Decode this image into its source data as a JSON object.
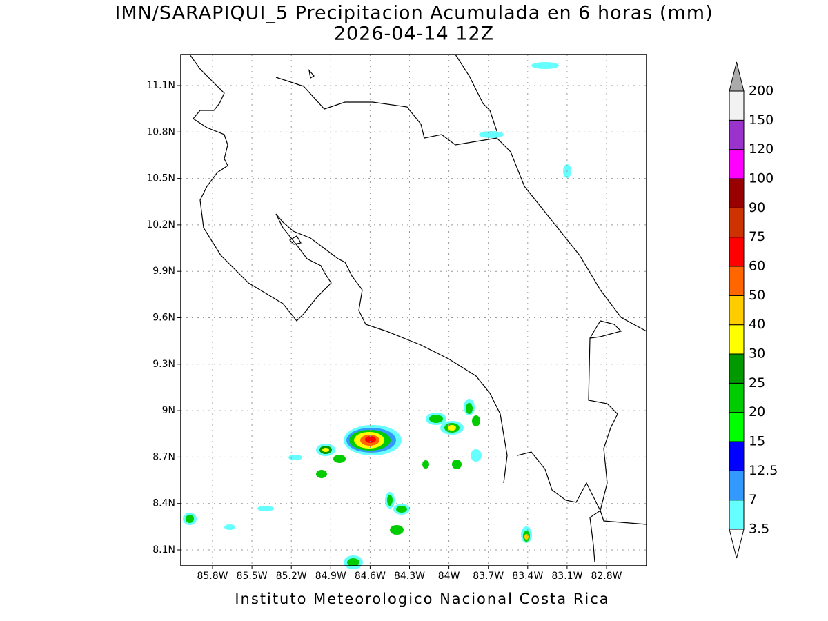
{
  "header": {
    "title": "IMN/SARAPIQUI_5 Precipitacion Acumulada en 6 horas (mm)",
    "subtitle": "2026-04-14 12Z"
  },
  "map": {
    "x_ticks": [
      "85.8W",
      "85.5W",
      "85.2W",
      "84.9W",
      "84.6W",
      "84.3W",
      "84W",
      "83.7W",
      "83.4W",
      "83.1W",
      "82.8W"
    ],
    "y_ticks": [
      "8.1N",
      "8.4N",
      "8.7N",
      "9N",
      "9.3N",
      "9.6N",
      "9.9N",
      "10.2N",
      "10.5N",
      "10.8N",
      "11.1N"
    ],
    "grid": true
  },
  "colorbar": {
    "levels": [
      "3.5",
      "7",
      "12.5",
      "15",
      "20",
      "25",
      "30",
      "40",
      "50",
      "60",
      "75",
      "90",
      "100",
      "120",
      "150",
      "200"
    ],
    "colors": [
      "#ffffff",
      "#66ffff",
      "#3399ff",
      "#0000ff",
      "#00ff00",
      "#00cc00",
      "#009900",
      "#ffff00",
      "#ffcc00",
      "#ff6600",
      "#ff0000",
      "#cc3300",
      "#990000",
      "#ff00ff",
      "#9933cc",
      "#f2f2f2",
      "#aaaaaa"
    ]
  },
  "footer": "Instituto Meteorologico Nacional Costa Rica"
}
